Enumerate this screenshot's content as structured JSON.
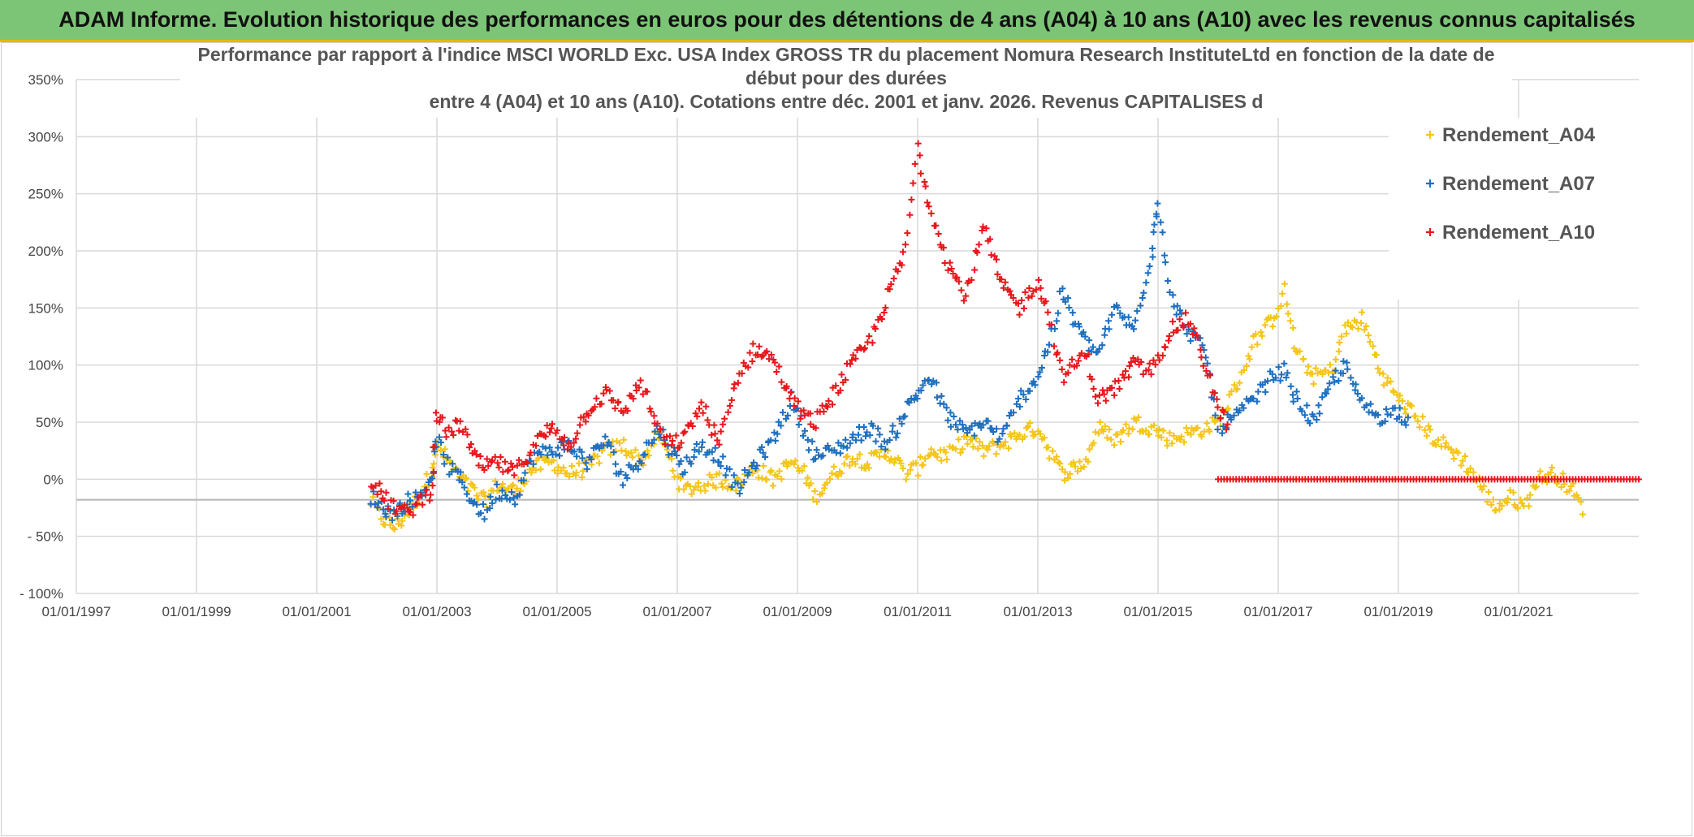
{
  "header": {
    "banner": "ADAM Informe. Evolution historique des performances en euros pour des détentions de 4 ans (A04) à 10 ans (A10) avec les revenus connus capitalisés"
  },
  "colors": {
    "banner_bg": "#7cc576",
    "A04": "#f5c518",
    "A07": "#1f6fbf",
    "A10": "#e8171c",
    "grid": "#d9d9d9"
  },
  "chart_data": {
    "type": "scatter",
    "title_lines": [
      "Performance par rapport à l'indice MSCI WORLD Exc. USA Index GROSS TR  du placement Nomura Research InstituteLtd en fonction de la date de",
      "début pour des durées",
      "entre 4 (A04) et 10 ans (A10). Cotations entre déc. 2001 et janv. 2026. Revenus CAPITALISES d"
    ],
    "xlabel": "",
    "ylabel": "",
    "xlim": [
      1997.0,
      2023.0
    ],
    "ylim": [
      -100,
      350
    ],
    "y_ticks": [
      -100,
      -50,
      0,
      50,
      100,
      150,
      200,
      250,
      300,
      350
    ],
    "y_tick_labels": [
      "- 100%",
      "- 50%",
      "0%",
      "50%",
      "100%",
      "150%",
      "200%",
      "250%",
      "300%",
      "350%"
    ],
    "x_ticks": [
      1997,
      1999,
      2001,
      2003,
      2005,
      2007,
      2009,
      2011,
      2013,
      2015,
      2017,
      2019,
      2021
    ],
    "x_tick_labels": [
      "01/01/1997",
      "01/01/1999",
      "01/01/2001",
      "01/01/2003",
      "01/01/2005",
      "01/01/2007",
      "01/01/2009",
      "01/01/2011",
      "01/01/2013",
      "01/01/2015",
      "01/01/2017",
      "01/01/2019",
      "01/01/2021"
    ],
    "x_axis_crossing": -18,
    "legend_position": "top-right",
    "series": [
      {
        "name": "Rendement_A04",
        "key": "A04",
        "x": [
          2001.9,
          2002.1,
          2002.3,
          2002.5,
          2002.7,
          2002.9,
          2003.0,
          2003.2,
          2003.4,
          2003.6,
          2003.8,
          2004.0,
          2004.3,
          2004.6,
          2004.9,
          2005.2,
          2005.5,
          2005.8,
          2006.1,
          2006.4,
          2006.7,
          2006.9,
          2007.1,
          2007.4,
          2007.7,
          2008.0,
          2008.3,
          2008.6,
          2008.9,
          2009.1,
          2009.3,
          2009.6,
          2009.9,
          2010.2,
          2010.5,
          2010.8,
          2011.0,
          2011.2,
          2011.5,
          2011.8,
          2012.1,
          2012.4,
          2012.7,
          2013.0,
          2013.2,
          2013.4,
          2013.6,
          2013.8,
          2014.0,
          2014.3,
          2014.6,
          2014.9,
          2015.2,
          2015.5,
          2015.8,
          2016.0,
          2016.3,
          2016.6,
          2016.9,
          2017.1,
          2017.3,
          2017.6,
          2017.9,
          2018.1,
          2018.4,
          2018.7,
          2019.0,
          2019.3,
          2019.6,
          2019.9,
          2020.1,
          2020.3,
          2020.6,
          2020.9,
          2021.1,
          2021.3,
          2021.6,
          2021.9,
          2022.1
        ],
        "y": [
          -20,
          -35,
          -42,
          -30,
          -15,
          5,
          30,
          15,
          0,
          -10,
          -20,
          -5,
          -10,
          10,
          15,
          5,
          10,
          25,
          30,
          15,
          40,
          15,
          -10,
          -5,
          0,
          -5,
          10,
          0,
          15,
          5,
          -15,
          5,
          20,
          15,
          25,
          5,
          10,
          25,
          20,
          35,
          25,
          30,
          40,
          45,
          25,
          5,
          10,
          15,
          45,
          35,
          50,
          45,
          35,
          40,
          45,
          50,
          80,
          120,
          140,
          165,
          110,
          90,
          95,
          130,
          140,
          95,
          70,
          55,
          35,
          25,
          15,
          0,
          -25,
          -15,
          -25,
          0,
          5,
          -10,
          -30
        ]
      },
      {
        "name": "Rendement_A07",
        "key": "A07",
        "x": [
          2001.9,
          2002.1,
          2002.3,
          2002.5,
          2002.7,
          2002.9,
          2003.0,
          2003.2,
          2003.4,
          2003.6,
          2003.8,
          2004.0,
          2004.3,
          2004.6,
          2004.9,
          2005.2,
          2005.5,
          2005.8,
          2006.1,
          2006.4,
          2006.7,
          2006.9,
          2007.1,
          2007.4,
          2007.7,
          2008.0,
          2008.3,
          2008.6,
          2008.9,
          2009.1,
          2009.3,
          2009.6,
          2009.9,
          2010.2,
          2010.5,
          2010.8,
          2011.0,
          2011.2,
          2011.5,
          2011.8,
          2012.1,
          2012.4,
          2012.7,
          2013.0,
          2013.2,
          2013.4,
          2013.6,
          2013.8,
          2014.0,
          2014.3,
          2014.6,
          2014.9,
          2015.0,
          2015.2,
          2015.5,
          2015.8,
          2016.0,
          2016.3,
          2016.6,
          2016.9,
          2017.1,
          2017.3,
          2017.6,
          2017.9,
          2018.1,
          2018.4,
          2018.7,
          2019.0,
          2019.2
        ],
        "y": [
          -15,
          -25,
          -30,
          -20,
          -15,
          0,
          35,
          10,
          0,
          -20,
          -30,
          -10,
          -15,
          20,
          25,
          30,
          15,
          35,
          0,
          20,
          45,
          25,
          10,
          30,
          20,
          -10,
          15,
          35,
          70,
          45,
          20,
          25,
          35,
          45,
          30,
          60,
          75,
          90,
          55,
          40,
          50,
          35,
          70,
          90,
          120,
          165,
          140,
          120,
          110,
          150,
          130,
          200,
          245,
          160,
          130,
          110,
          45,
          55,
          70,
          90,
          95,
          70,
          50,
          85,
          100,
          65,
          55,
          60,
          50
        ]
      },
      {
        "name": "Rendement_A10",
        "key": "A10",
        "x": [
          2001.9,
          2002.1,
          2002.3,
          2002.5,
          2002.7,
          2002.9,
          2003.0,
          2003.2,
          2003.4,
          2003.6,
          2003.8,
          2004.0,
          2004.3,
          2004.6,
          2004.9,
          2005.2,
          2005.5,
          2005.8,
          2006.1,
          2006.4,
          2006.7,
          2006.9,
          2007.1,
          2007.4,
          2007.7,
          2008.0,
          2008.3,
          2008.6,
          2008.9,
          2009.1,
          2009.3,
          2009.6,
          2009.9,
          2010.2,
          2010.5,
          2010.8,
          2011.0,
          2011.2,
          2011.5,
          2011.8,
          2012.1,
          2012.4,
          2012.7,
          2013.0,
          2013.2,
          2013.4,
          2013.6,
          2013.8,
          2014.0,
          2014.3,
          2014.6,
          2014.9,
          2015.2,
          2015.5,
          2015.8,
          2016.0,
          2016.2
        ],
        "y": [
          0,
          -15,
          -25,
          -30,
          -20,
          -10,
          55,
          40,
          50,
          20,
          10,
          15,
          5,
          30,
          45,
          30,
          60,
          75,
          60,
          85,
          40,
          30,
          35,
          65,
          30,
          90,
          115,
          105,
          70,
          55,
          50,
          75,
          100,
          120,
          160,
          200,
          290,
          240,
          190,
          160,
          220,
          170,
          150,
          175,
          140,
          90,
          100,
          110,
          70,
          80,
          100,
          95,
          130,
          140,
          100,
          60,
          45
        ]
      }
    ],
    "zero_band": {
      "series": "Rendement_A10",
      "x_start": 2016.0,
      "x_end": 2023.0,
      "y": 0
    }
  }
}
